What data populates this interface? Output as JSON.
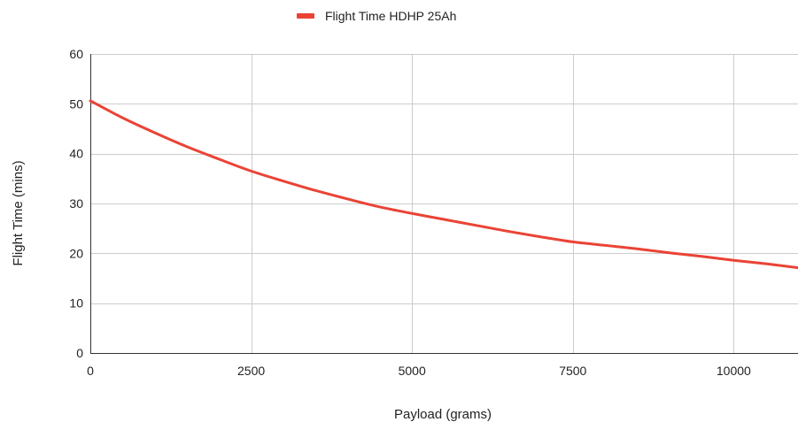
{
  "chart_data": {
    "type": "line",
    "xlabel": "Payload (grams)",
    "ylabel": "Flight Time (mins)",
    "xlim": [
      0,
      11000
    ],
    "ylim": [
      0,
      60
    ],
    "x_ticks": [
      0,
      2500,
      5000,
      7500,
      10000
    ],
    "y_ticks": [
      0,
      10,
      20,
      30,
      40,
      50,
      60
    ],
    "grid": true,
    "legend_position": "top",
    "series": [
      {
        "name": "Flight Time HDHP 25Ah",
        "color": "#ea4335",
        "x": [
          0,
          500,
          1000,
          1500,
          2000,
          2500,
          3000,
          3500,
          4000,
          4500,
          5000,
          5500,
          6000,
          6500,
          7000,
          7500,
          8000,
          8500,
          9000,
          9500,
          10000,
          10500,
          11000
        ],
        "y": [
          50.6,
          47.2,
          44.2,
          41.4,
          38.9,
          36.5,
          34.5,
          32.6,
          30.9,
          29.3,
          28.0,
          26.8,
          25.6,
          24.4,
          23.3,
          22.3,
          21.6,
          20.9,
          20.1,
          19.4,
          18.6,
          17.9,
          17.1
        ]
      }
    ]
  }
}
